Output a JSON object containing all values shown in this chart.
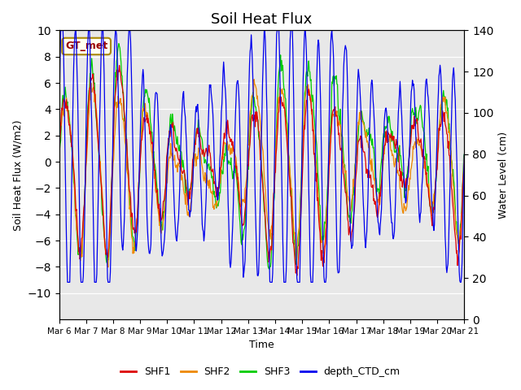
{
  "title": "Soil Heat Flux",
  "ylabel_left": "Soil Heat Flux (W/m2)",
  "ylabel_right": "Water Level (cm)",
  "xlabel": "Time",
  "ylim_left": [
    -12,
    10
  ],
  "ylim_right": [
    0,
    140
  ],
  "yticks_left": [
    -10,
    -8,
    -6,
    -4,
    -2,
    0,
    2,
    4,
    6,
    8,
    10
  ],
  "yticks_right": [
    0,
    20,
    40,
    60,
    80,
    100,
    120,
    140
  ],
  "colors": {
    "SHF1": "#dd0000",
    "SHF2": "#ee8800",
    "SHF3": "#00cc00",
    "depth_CTD_cm": "#0000ee"
  },
  "annotation_text": "GT_met",
  "annotation_fg": "#990000",
  "annotation_bg": "#fffff0",
  "annotation_edge": "#aa8800",
  "background_color": "#e8e8e8",
  "title_fontsize": 13
}
